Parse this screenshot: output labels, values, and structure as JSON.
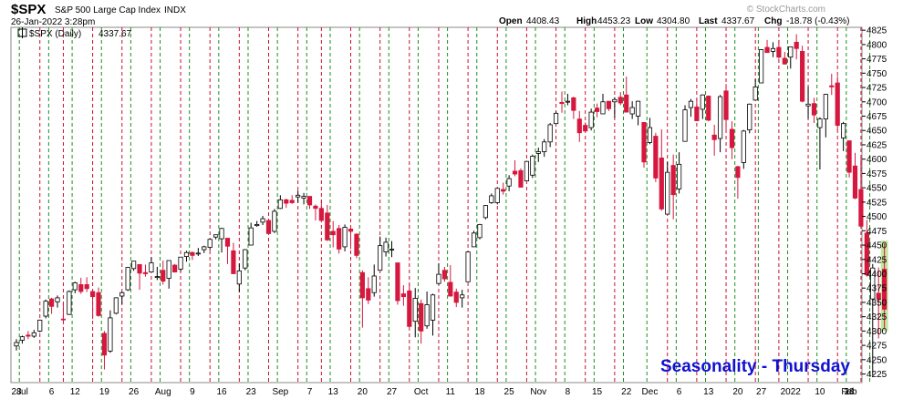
{
  "header": {
    "symbol": "$SPX",
    "name": "S&P 500 Large Cap Index",
    "exchange": "INDX",
    "datetime": "26-Jan-2022 3:28pm",
    "watermark": "© StockCharts.com",
    "open_label": "Open",
    "open": "4408.43",
    "high_label": "High",
    "high": "4453.23",
    "low_label": "Low",
    "low": "4304.80",
    "last_label": "Last",
    "last": "4337.67",
    "chg_label": "Chg",
    "chg": "-18.78 (-0.43%)"
  },
  "legend": {
    "series_label": "$SPX (Daily)",
    "value": "4337.67"
  },
  "overlay_text": "Seasonality - Thursday",
  "colors": {
    "up_candle": "#ffffff",
    "down_candle": "#d6173e",
    "candle_outline": "#000000",
    "thursday_line": "#c8102e",
    "weekly_line": "#1f8f1f",
    "highlight": "#b5e08a",
    "overlay_text": "#1010d0"
  },
  "chart_data": {
    "type": "candlestick",
    "title": "$SPX S&P 500 Large Cap Index INDX",
    "ylim": [
      4210,
      4830
    ],
    "y_ticks": [
      4225,
      4250,
      4275,
      4300,
      4325,
      4350,
      4375,
      4400,
      4425,
      4450,
      4475,
      4500,
      4525,
      4550,
      4575,
      4600,
      4625,
      4650,
      4675,
      4700,
      4725,
      4750,
      4775,
      4800,
      4825
    ],
    "x_tick_labels": [
      "28",
      "Jul",
      "6",
      "12",
      "19",
      "26",
      "Aug",
      "9",
      "16",
      "23",
      "Sep",
      "7",
      "13",
      "20",
      "27",
      "Oct",
      "11",
      "18",
      "25",
      "Nov",
      "8",
      "15",
      "22",
      "Dec",
      "6",
      "13",
      "20",
      "27",
      "2022",
      "10",
      "18",
      "24",
      "Feb"
    ],
    "start_date": "2021-06-25",
    "grid": "vertical weekly lines; red dashed on Thursdays, green dashed on other weeks",
    "highlight_last": true,
    "candles": [
      {
        "d": "06-25",
        "o": 4274,
        "h": 4286,
        "l": 4266,
        "c": 4280
      },
      {
        "d": "06-28",
        "o": 4284,
        "h": 4292,
        "l": 4278,
        "c": 4290
      },
      {
        "d": "06-29",
        "o": 4293,
        "h": 4300,
        "l": 4286,
        "c": 4291
      },
      {
        "d": "06-30",
        "o": 4291,
        "h": 4302,
        "l": 4288,
        "c": 4297
      },
      {
        "d": "07-01",
        "o": 4300,
        "h": 4320,
        "l": 4298,
        "c": 4319
      },
      {
        "d": "07-02",
        "o": 4326,
        "h": 4355,
        "l": 4322,
        "c": 4352
      },
      {
        "d": "07-06",
        "o": 4356,
        "h": 4358,
        "l": 4330,
        "c": 4343
      },
      {
        "d": "07-07",
        "o": 4351,
        "h": 4362,
        "l": 4341,
        "c": 4358
      },
      {
        "d": "07-08",
        "o": 4321,
        "h": 4350,
        "l": 4317,
        "c": 4320
      },
      {
        "d": "07-09",
        "o": 4329,
        "h": 4371,
        "l": 4328,
        "c": 4369
      },
      {
        "d": "07-12",
        "o": 4372,
        "h": 4386,
        "l": 4366,
        "c": 4384
      },
      {
        "d": "07-13",
        "o": 4381,
        "h": 4393,
        "l": 4365,
        "c": 4369
      },
      {
        "d": "07-14",
        "o": 4381,
        "h": 4394,
        "l": 4368,
        "c": 4374
      },
      {
        "d": "07-15",
        "o": 4369,
        "h": 4370,
        "l": 4321,
        "c": 4360
      },
      {
        "d": "07-16",
        "o": 4367,
        "h": 4376,
        "l": 4325,
        "c": 4327
      },
      {
        "d": "07-19",
        "o": 4296,
        "h": 4300,
        "l": 4233,
        "c": 4258
      },
      {
        "d": "07-20",
        "o": 4265,
        "h": 4336,
        "l": 4262,
        "c": 4323
      },
      {
        "d": "07-21",
        "o": 4331,
        "h": 4359,
        "l": 4329,
        "c": 4358
      },
      {
        "d": "07-22",
        "o": 4361,
        "h": 4369,
        "l": 4347,
        "c": 4367
      },
      {
        "d": "07-23",
        "o": 4372,
        "h": 4412,
        "l": 4370,
        "c": 4411
      },
      {
        "d": "07-26",
        "o": 4409,
        "h": 4422,
        "l": 4405,
        "c": 4422
      },
      {
        "d": "07-27",
        "o": 4416,
        "h": 4416,
        "l": 4372,
        "c": 4401
      },
      {
        "d": "07-28",
        "o": 4402,
        "h": 4416,
        "l": 4395,
        "c": 4400
      },
      {
        "d": "07-29",
        "o": 4403,
        "h": 4429,
        "l": 4403,
        "c": 4419
      },
      {
        "d": "07-30",
        "o": 4395,
        "h": 4412,
        "l": 4389,
        "c": 4395
      },
      {
        "d": "08-02",
        "o": 4406,
        "h": 4423,
        "l": 4381,
        "c": 4387
      },
      {
        "d": "08-03",
        "o": 4392,
        "h": 4423,
        "l": 4374,
        "c": 4423
      },
      {
        "d": "08-04",
        "o": 4415,
        "h": 4417,
        "l": 4402,
        "c": 4403
      },
      {
        "d": "08-05",
        "o": 4408,
        "h": 4429,
        "l": 4404,
        "c": 4429
      },
      {
        "d": "08-06",
        "o": 4430,
        "h": 4440,
        "l": 4421,
        "c": 4437
      },
      {
        "d": "08-09",
        "o": 4437,
        "h": 4439,
        "l": 4424,
        "c": 4432
      },
      {
        "d": "08-10",
        "o": 4436,
        "h": 4445,
        "l": 4431,
        "c": 4436
      },
      {
        "d": "08-11",
        "o": 4442,
        "h": 4449,
        "l": 4436,
        "c": 4447
      },
      {
        "d": "08-12",
        "o": 4446,
        "h": 4461,
        "l": 4441,
        "c": 4460
      },
      {
        "d": "08-13",
        "o": 4464,
        "h": 4468,
        "l": 4460,
        "c": 4468
      },
      {
        "d": "08-16",
        "o": 4461,
        "h": 4480,
        "l": 4437,
        "c": 4479
      },
      {
        "d": "08-17",
        "o": 4462,
        "h": 4462,
        "l": 4417,
        "c": 4448
      },
      {
        "d": "08-18",
        "o": 4440,
        "h": 4454,
        "l": 4400,
        "c": 4400
      },
      {
        "d": "08-19",
        "o": 4382,
        "h": 4418,
        "l": 4368,
        "c": 4405
      },
      {
        "d": "08-20",
        "o": 4410,
        "h": 4443,
        "l": 4406,
        "c": 4442
      },
      {
        "d": "08-23",
        "o": 4450,
        "h": 4489,
        "l": 4450,
        "c": 4480
      },
      {
        "d": "08-24",
        "o": 4484,
        "h": 4492,
        "l": 4482,
        "c": 4486
      },
      {
        "d": "08-25",
        "o": 4490,
        "h": 4501,
        "l": 4485,
        "c": 4496
      },
      {
        "d": "08-26",
        "o": 4493,
        "h": 4495,
        "l": 4468,
        "c": 4470
      },
      {
        "d": "08-27",
        "o": 4474,
        "h": 4513,
        "l": 4471,
        "c": 4509
      },
      {
        "d": "08-30",
        "o": 4514,
        "h": 4537,
        "l": 4513,
        "c": 4529
      },
      {
        "d": "08-31",
        "o": 4529,
        "h": 4531,
        "l": 4515,
        "c": 4523
      },
      {
        "d": "09-01",
        "o": 4528,
        "h": 4537,
        "l": 4522,
        "c": 4524
      },
      {
        "d": "09-02",
        "o": 4534,
        "h": 4545,
        "l": 4524,
        "c": 4537
      },
      {
        "d": "09-03",
        "o": 4532,
        "h": 4541,
        "l": 4521,
        "c": 4535
      },
      {
        "d": "09-07",
        "o": 4535,
        "h": 4535,
        "l": 4513,
        "c": 4520
      },
      {
        "d": "09-08",
        "o": 4518,
        "h": 4521,
        "l": 4493,
        "c": 4514
      },
      {
        "d": "09-09",
        "o": 4514,
        "h": 4529,
        "l": 4492,
        "c": 4493
      },
      {
        "d": "09-10",
        "o": 4506,
        "h": 4520,
        "l": 4457,
        "c": 4459
      },
      {
        "d": "09-13",
        "o": 4474,
        "h": 4492,
        "l": 4446,
        "c": 4468
      },
      {
        "d": "09-14",
        "o": 4479,
        "h": 4485,
        "l": 4435,
        "c": 4443
      },
      {
        "d": "09-15",
        "o": 4447,
        "h": 4486,
        "l": 4439,
        "c": 4481
      },
      {
        "d": "09-16",
        "o": 4478,
        "h": 4485,
        "l": 4443,
        "c": 4474
      },
      {
        "d": "09-17",
        "o": 4469,
        "h": 4471,
        "l": 4427,
        "c": 4432
      },
      {
        "d": "09-20",
        "o": 4402,
        "h": 4406,
        "l": 4306,
        "c": 4358
      },
      {
        "d": "09-21",
        "o": 4374,
        "h": 4394,
        "l": 4347,
        "c": 4354
      },
      {
        "d": "09-22",
        "o": 4367,
        "h": 4416,
        "l": 4360,
        "c": 4396
      },
      {
        "d": "09-23",
        "o": 4406,
        "h": 4465,
        "l": 4406,
        "c": 4449
      },
      {
        "d": "09-24",
        "o": 4438,
        "h": 4463,
        "l": 4430,
        "c": 4455
      },
      {
        "d": "09-27",
        "o": 4442,
        "h": 4457,
        "l": 4429,
        "c": 4443
      },
      {
        "d": "09-28",
        "o": 4419,
        "h": 4419,
        "l": 4346,
        "c": 4353
      },
      {
        "d": "09-29",
        "o": 4365,
        "h": 4380,
        "l": 4344,
        "c": 4360
      },
      {
        "d": "09-30",
        "o": 4370,
        "h": 4383,
        "l": 4306,
        "c": 4308
      },
      {
        "d": "10-01",
        "o": 4317,
        "h": 4375,
        "l": 4289,
        "c": 4357
      },
      {
        "d": "10-04",
        "o": 4348,
        "h": 4355,
        "l": 4278,
        "c": 4300
      },
      {
        "d": "10-05",
        "o": 4309,
        "h": 4369,
        "l": 4304,
        "c": 4346
      },
      {
        "d": "10-06",
        "o": 4319,
        "h": 4365,
        "l": 4292,
        "c": 4363
      },
      {
        "d": "10-07",
        "o": 4383,
        "h": 4418,
        "l": 4381,
        "c": 4399
      },
      {
        "d": "10-08",
        "o": 4406,
        "h": 4412,
        "l": 4386,
        "c": 4391
      },
      {
        "d": "10-11",
        "o": 4385,
        "h": 4415,
        "l": 4360,
        "c": 4361
      },
      {
        "d": "10-12",
        "o": 4368,
        "h": 4374,
        "l": 4342,
        "c": 4350
      },
      {
        "d": "10-13",
        "o": 4358,
        "h": 4372,
        "l": 4341,
        "c": 4363
      },
      {
        "d": "10-14",
        "o": 4386,
        "h": 4439,
        "l": 4386,
        "c": 4438
      },
      {
        "d": "10-15",
        "o": 4447,
        "h": 4475,
        "l": 4447,
        "c": 4471
      },
      {
        "d": "10-18",
        "o": 4463,
        "h": 4487,
        "l": 4460,
        "c": 4486
      },
      {
        "d": "10-19",
        "o": 4498,
        "h": 4520,
        "l": 4495,
        "c": 4519
      },
      {
        "d": "10-20",
        "o": 4524,
        "h": 4540,
        "l": 4522,
        "c": 4536
      },
      {
        "d": "10-21",
        "o": 4524,
        "h": 4549,
        "l": 4521,
        "c": 4549
      },
      {
        "d": "10-22",
        "o": 4547,
        "h": 4559,
        "l": 4538,
        "c": 4544
      },
      {
        "d": "10-25",
        "o": 4553,
        "h": 4572,
        "l": 4544,
        "c": 4566
      },
      {
        "d": "10-26",
        "o": 4579,
        "h": 4598,
        "l": 4570,
        "c": 4574
      },
      {
        "d": "10-27",
        "o": 4580,
        "h": 4584,
        "l": 4551,
        "c": 4551
      },
      {
        "d": "10-28",
        "o": 4562,
        "h": 4597,
        "l": 4562,
        "c": 4596
      },
      {
        "d": "10-29",
        "o": 4572,
        "h": 4608,
        "l": 4567,
        "c": 4605
      },
      {
        "d": "11-01",
        "o": 4610,
        "h": 4620,
        "l": 4595,
        "c": 4613
      },
      {
        "d": "11-02",
        "o": 4613,
        "h": 4635,
        "l": 4604,
        "c": 4630
      },
      {
        "d": "11-03",
        "o": 4630,
        "h": 4663,
        "l": 4621,
        "c": 4660
      },
      {
        "d": "11-04",
        "o": 4662,
        "h": 4683,
        "l": 4662,
        "c": 4680
      },
      {
        "d": "11-05",
        "o": 4699,
        "h": 4718,
        "l": 4681,
        "c": 4697
      },
      {
        "d": "11-08",
        "o": 4701,
        "h": 4714,
        "l": 4694,
        "c": 4701
      },
      {
        "d": "11-09",
        "o": 4707,
        "h": 4709,
        "l": 4670,
        "c": 4685
      },
      {
        "d": "11-10",
        "o": 4670,
        "h": 4684,
        "l": 4630,
        "c": 4646
      },
      {
        "d": "11-11",
        "o": 4659,
        "h": 4664,
        "l": 4648,
        "c": 4649
      },
      {
        "d": "11-12",
        "o": 4655,
        "h": 4688,
        "l": 4650,
        "c": 4682
      },
      {
        "d": "11-15",
        "o": 4689,
        "h": 4697,
        "l": 4673,
        "c": 4683
      },
      {
        "d": "11-16",
        "o": 4679,
        "h": 4714,
        "l": 4679,
        "c": 4700
      },
      {
        "d": "11-17",
        "o": 4701,
        "h": 4701,
        "l": 4684,
        "c": 4688
      },
      {
        "d": "11-18",
        "o": 4700,
        "h": 4708,
        "l": 4672,
        "c": 4704
      },
      {
        "d": "11-19",
        "o": 4708,
        "h": 4717,
        "l": 4694,
        "c": 4698
      },
      {
        "d": "11-22",
        "o": 4712,
        "h": 4744,
        "l": 4682,
        "c": 4682
      },
      {
        "d": "11-23",
        "o": 4679,
        "h": 4701,
        "l": 4670,
        "c": 4690
      },
      {
        "d": "11-24",
        "o": 4675,
        "h": 4702,
        "l": 4659,
        "c": 4701
      },
      {
        "d": "11-26",
        "o": 4664,
        "h": 4664,
        "l": 4585,
        "c": 4595
      },
      {
        "d": "11-29",
        "o": 4629,
        "h": 4672,
        "l": 4626,
        "c": 4655
      },
      {
        "d": "11-30",
        "o": 4640,
        "h": 4646,
        "l": 4560,
        "c": 4567
      },
      {
        "d": "12-01",
        "o": 4602,
        "h": 4652,
        "l": 4510,
        "c": 4513
      },
      {
        "d": "12-02",
        "o": 4504,
        "h": 4595,
        "l": 4504,
        "c": 4577
      },
      {
        "d": "12-03",
        "o": 4589,
        "h": 4608,
        "l": 4495,
        "c": 4538
      },
      {
        "d": "12-06",
        "o": 4548,
        "h": 4612,
        "l": 4540,
        "c": 4591
      },
      {
        "d": "12-07",
        "o": 4631,
        "h": 4694,
        "l": 4631,
        "c": 4686
      },
      {
        "d": "12-08",
        "o": 4690,
        "h": 4705,
        "l": 4674,
        "c": 4701
      },
      {
        "d": "12-09",
        "o": 4691,
        "h": 4705,
        "l": 4667,
        "c": 4667
      },
      {
        "d": "12-10",
        "o": 4687,
        "h": 4713,
        "l": 4670,
        "c": 4712
      },
      {
        "d": "12-13",
        "o": 4710,
        "h": 4711,
        "l": 4666,
        "c": 4668
      },
      {
        "d": "12-14",
        "o": 4642,
        "h": 4660,
        "l": 4606,
        "c": 4634
      },
      {
        "d": "12-15",
        "o": 4636,
        "h": 4712,
        "l": 4612,
        "c": 4709
      },
      {
        "d": "12-16",
        "o": 4719,
        "h": 4731,
        "l": 4647,
        "c": 4669
      },
      {
        "d": "12-17",
        "o": 4652,
        "h": 4666,
        "l": 4600,
        "c": 4620
      },
      {
        "d": "12-20",
        "o": 4587,
        "h": 4588,
        "l": 4531,
        "c": 4568
      },
      {
        "d": "12-21",
        "o": 4594,
        "h": 4651,
        "l": 4583,
        "c": 4649
      },
      {
        "d": "12-22",
        "o": 4651,
        "h": 4697,
        "l": 4645,
        "c": 4696
      },
      {
        "d": "12-23",
        "o": 4703,
        "h": 4740,
        "l": 4703,
        "c": 4726
      },
      {
        "d": "12-27",
        "o": 4733,
        "h": 4792,
        "l": 4733,
        "c": 4791
      },
      {
        "d": "12-28",
        "o": 4795,
        "h": 4808,
        "l": 4786,
        "c": 4786
      },
      {
        "d": "12-29",
        "o": 4788,
        "h": 4804,
        "l": 4778,
        "c": 4793
      },
      {
        "d": "12-30",
        "o": 4795,
        "h": 4808,
        "l": 4775,
        "c": 4778
      },
      {
        "d": "12-31",
        "o": 4776,
        "h": 4787,
        "l": 4765,
        "c": 4766
      },
      {
        "d": "01-03",
        "o": 4778,
        "h": 4796,
        "l": 4758,
        "c": 4796
      },
      {
        "d": "01-04",
        "o": 4804,
        "h": 4818,
        "l": 4774,
        "c": 4793
      },
      {
        "d": "01-05",
        "o": 4788,
        "h": 4798,
        "l": 4699,
        "c": 4701
      },
      {
        "d": "01-06",
        "o": 4693,
        "h": 4726,
        "l": 4671,
        "c": 4696
      },
      {
        "d": "01-07",
        "o": 4697,
        "h": 4707,
        "l": 4663,
        "c": 4677
      },
      {
        "d": "01-10",
        "o": 4655,
        "h": 4673,
        "l": 4582,
        "c": 4670
      },
      {
        "d": "01-11",
        "o": 4670,
        "h": 4714,
        "l": 4638,
        "c": 4713
      },
      {
        "d": "01-12",
        "o": 4728,
        "h": 4749,
        "l": 4712,
        "c": 4726
      },
      {
        "d": "01-13",
        "o": 4733,
        "h": 4745,
        "l": 4650,
        "c": 4659
      },
      {
        "d": "01-14",
        "o": 4637,
        "h": 4665,
        "l": 4614,
        "c": 4662
      },
      {
        "d": "01-18",
        "o": 4632,
        "h": 4632,
        "l": 4568,
        "c": 4577
      },
      {
        "d": "01-19",
        "o": 4588,
        "h": 4611,
        "l": 4530,
        "c": 4532
      },
      {
        "d": "01-20",
        "o": 4547,
        "h": 4602,
        "l": 4483,
        "c": 4483
      },
      {
        "d": "01-21",
        "o": 4471,
        "h": 4494,
        "l": 4395,
        "c": 4398
      },
      {
        "d": "01-24",
        "o": 4356,
        "h": 4417,
        "l": 4222,
        "c": 4410
      },
      {
        "d": "01-25",
        "o": 4366,
        "h": 4411,
        "l": 4287,
        "c": 4356
      },
      {
        "d": "01-26",
        "o": 4408,
        "h": 4453,
        "l": 4305,
        "c": 4338
      }
    ]
  }
}
